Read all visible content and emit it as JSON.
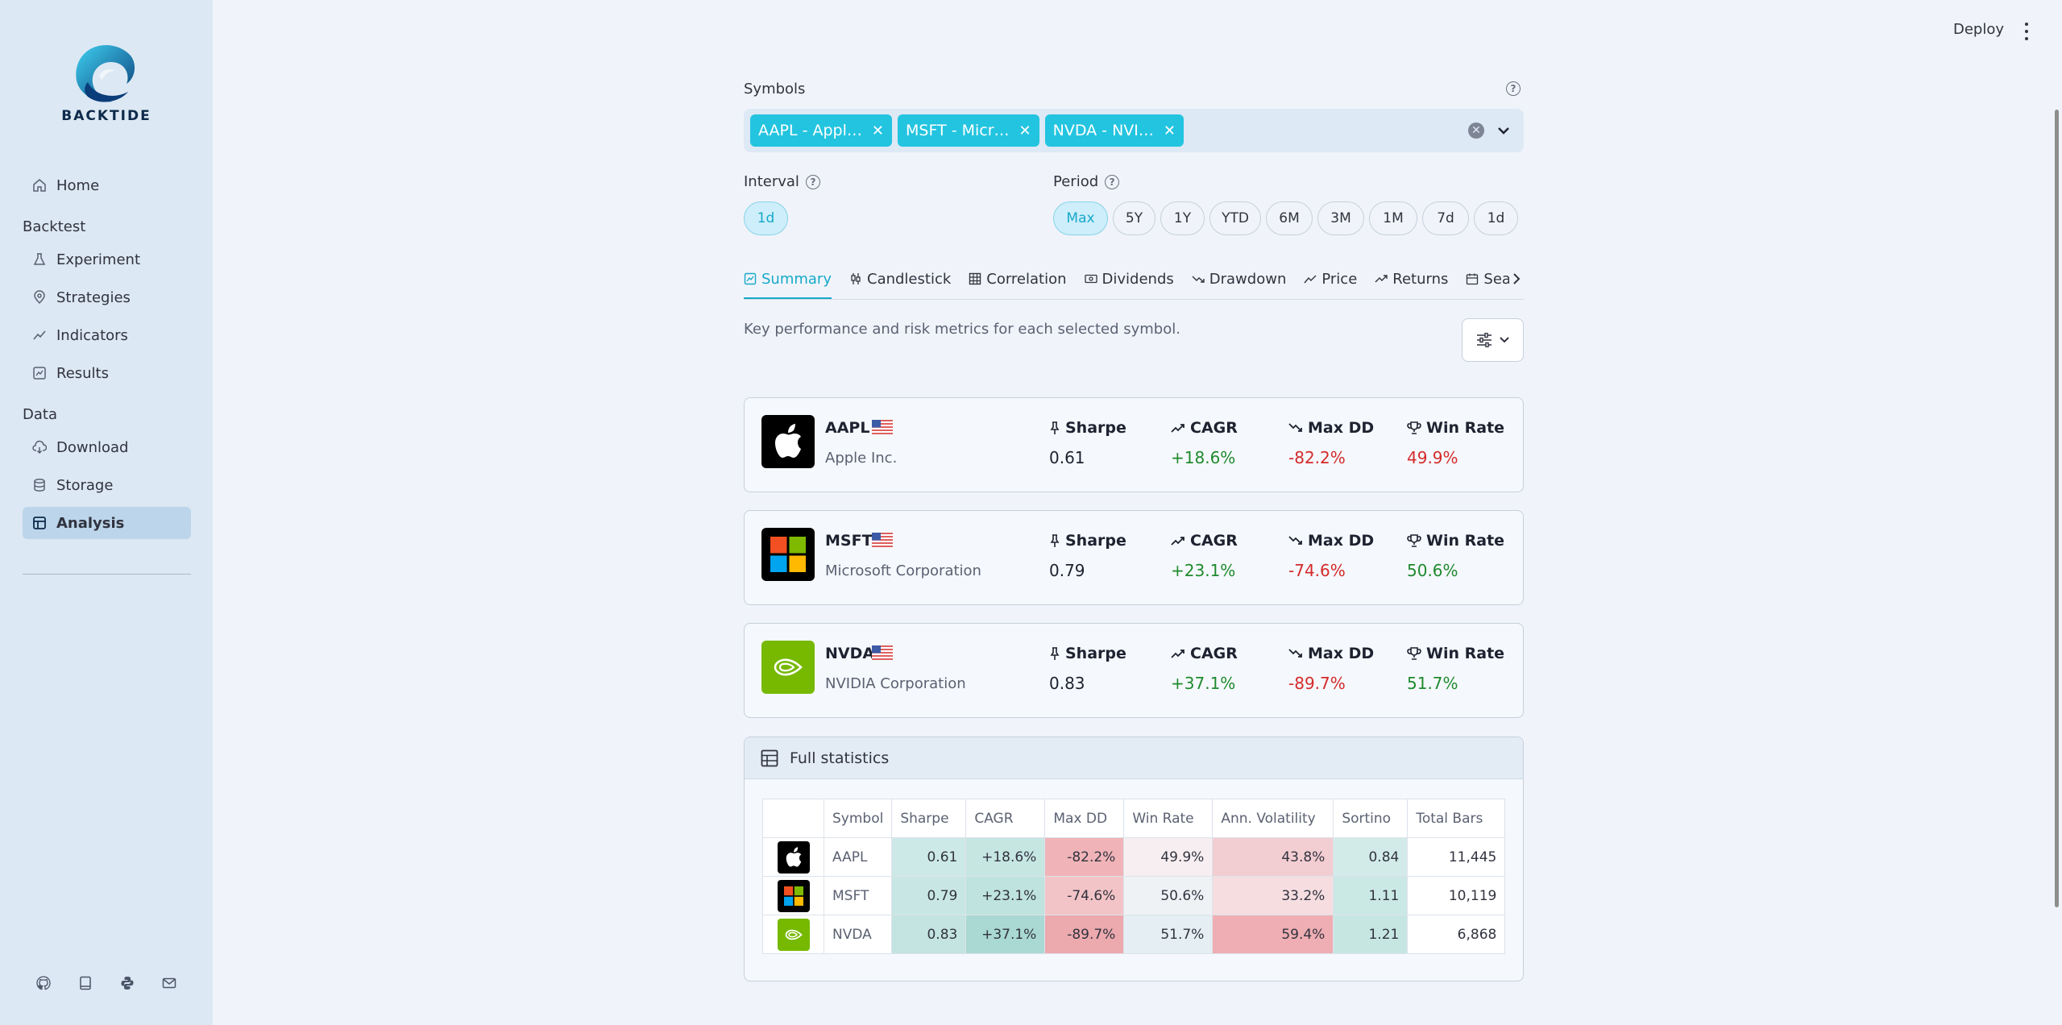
{
  "sidebar": {
    "brand": "BACKTIDE",
    "home": "Home",
    "sections": [
      {
        "title": "Backtest",
        "items": [
          "Experiment",
          "Strategies",
          "Indicators",
          "Results"
        ]
      },
      {
        "title": "Data",
        "items": [
          "Download",
          "Storage",
          "Analysis"
        ]
      }
    ],
    "active": "Analysis"
  },
  "header": {
    "deploy": "Deploy"
  },
  "symbols": {
    "label": "Symbols",
    "tags": [
      "AAPL - Appl…",
      "MSFT - Micr…",
      "NVDA - NVI…"
    ]
  },
  "interval": {
    "label": "Interval",
    "options": [
      "1d"
    ],
    "selected": "1d"
  },
  "period": {
    "label": "Period",
    "options": [
      "Max",
      "5Y",
      "1Y",
      "YTD",
      "6M",
      "3M",
      "1M",
      "7d",
      "1d"
    ],
    "selected": "Max"
  },
  "tabs": [
    "Summary",
    "Candlestick",
    "Correlation",
    "Dividends",
    "Drawdown",
    "Price",
    "Returns",
    "Seasonali"
  ],
  "active_tab": "Summary",
  "description": "Key performance and risk metrics for each selected symbol.",
  "metric_labels": {
    "sharpe": "Sharpe",
    "cagr": "CAGR",
    "maxdd": "Max DD",
    "winrate": "Win Rate"
  },
  "cards": [
    {
      "ticker": "AAPL",
      "name": "Apple Inc.",
      "sharpe": "0.61",
      "cagr": "+18.6%",
      "maxdd": "-82.2%",
      "winrate": "49.9%",
      "winrate_status": "neg"
    },
    {
      "ticker": "MSFT",
      "name": "Microsoft Corporation",
      "sharpe": "0.79",
      "cagr": "+23.1%",
      "maxdd": "-74.6%",
      "winrate": "50.6%",
      "winrate_status": "pos"
    },
    {
      "ticker": "NVDA",
      "name": "NVIDIA Corporation",
      "sharpe": "0.83",
      "cagr": "+37.1%",
      "maxdd": "-89.7%",
      "winrate": "51.7%",
      "winrate_status": "pos"
    }
  ],
  "full_stats": {
    "title": "Full statistics",
    "columns": [
      "",
      "Symbol",
      "Sharpe",
      "CAGR",
      "Max DD",
      "Win Rate",
      "Ann. Volatility",
      "Sortino",
      "Total Bars"
    ],
    "rows": [
      [
        "AAPL",
        "0.61",
        "+18.6%",
        "-82.2%",
        "49.9%",
        "43.8%",
        "0.84",
        "11,445"
      ],
      [
        "MSFT",
        "0.79",
        "+23.1%",
        "-74.6%",
        "50.6%",
        "33.2%",
        "1.11",
        "10,119"
      ],
      [
        "NVDA",
        "0.83",
        "+37.1%",
        "-89.7%",
        "51.7%",
        "59.4%",
        "1.21",
        "6,868"
      ]
    ]
  },
  "colors": {
    "accent": "#17a9c8",
    "tag": "#23c4e0",
    "positive": "#1f8a2e",
    "negative": "#d42a2a",
    "nvidia": "#76b900"
  }
}
